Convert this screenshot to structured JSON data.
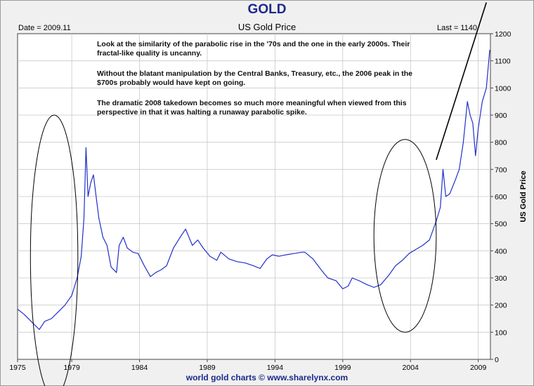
{
  "header": {
    "title": "GOLD",
    "date_label": "Date = 2009.11",
    "subtitle": "US Gold Price",
    "last_label": "Last = 1140"
  },
  "notes": {
    "p1": "Look at the similarity of the parabolic rise in the '70s and the one in the early 2000s. Their fractal-like quality is uncanny.",
    "p2_a": "Without the blatant manipulation by the Central Banks, Treasury, etc., the ",
    "p2_bold": "2006",
    "p2_b": " peak in the $700s probably would have kept on going.",
    "p3": "The dramatic 2008 takedown becomes so much more meaningful when viewed from this perspective in that it was halting a runaway parabolic spike."
  },
  "footer": "world gold charts © www.sharelynx.com",
  "colors": {
    "line": "#2230c8",
    "grid": "#c8c8c8",
    "title": "#1c2a8a",
    "plot_bg": "#ffffff"
  },
  "chart_data": {
    "type": "line",
    "title": "US Gold Price",
    "xlabel": "",
    "ylabel": "US Gold Price",
    "xlim": [
      1975,
      2009.9
    ],
    "ylim": [
      0,
      1200
    ],
    "y_axis_side": "right",
    "grid": true,
    "x_ticks": [
      1975,
      1979,
      1984,
      1989,
      1994,
      1999,
      2004,
      2009
    ],
    "y_ticks": [
      0,
      100,
      200,
      300,
      400,
      500,
      600,
      700,
      800,
      900,
      1000,
      1100,
      1200
    ],
    "series": [
      {
        "x": [
          1975.0,
          1975.5,
          1976.0,
          1976.6,
          1977.0,
          1977.5,
          1978.0,
          1978.5,
          1979.0,
          1979.4,
          1979.7,
          1979.9,
          1980.05,
          1980.2,
          1980.4,
          1980.6,
          1980.8,
          1981.0,
          1981.3,
          1981.6,
          1981.9,
          1982.3,
          1982.5,
          1982.8,
          1983.1,
          1983.5,
          1983.9,
          1984.3,
          1984.8,
          1985.2,
          1985.6,
          1986.0,
          1986.5,
          1987.0,
          1987.4,
          1987.9,
          1988.3,
          1988.7,
          1989.2,
          1989.7,
          1990.0,
          1990.6,
          1991.2,
          1991.8,
          1992.4,
          1992.9,
          1993.4,
          1993.8,
          1994.3,
          1994.8,
          1995.4,
          1996.0,
          1996.2,
          1996.8,
          1997.4,
          1997.9,
          1998.5,
          1999.0,
          1999.4,
          1999.7,
          2000.2,
          2000.8,
          2001.3,
          2001.8,
          2002.4,
          2002.9,
          2003.4,
          2003.9,
          2004.4,
          2004.9,
          2005.4,
          2005.9,
          2006.2,
          2006.4,
          2006.6,
          2006.9,
          2007.3,
          2007.6,
          2007.9,
          2008.2,
          2008.4,
          2008.6,
          2008.8,
          2009.0,
          2009.3,
          2009.6,
          2009.85
        ],
        "y": [
          185,
          165,
          140,
          110,
          140,
          150,
          175,
          200,
          235,
          300,
          380,
          520,
          780,
          600,
          650,
          680,
          600,
          520,
          450,
          420,
          340,
          320,
          420,
          450,
          410,
          395,
          390,
          350,
          305,
          320,
          330,
          345,
          410,
          450,
          480,
          420,
          440,
          410,
          380,
          365,
          395,
          370,
          360,
          355,
          345,
          335,
          370,
          385,
          380,
          385,
          390,
          395,
          395,
          370,
          330,
          300,
          290,
          260,
          270,
          300,
          290,
          275,
          265,
          275,
          310,
          345,
          365,
          390,
          405,
          420,
          440,
          510,
          560,
          700,
          600,
          610,
          660,
          700,
          800,
          950,
          900,
          870,
          750,
          850,
          950,
          1000,
          1140
        ]
      }
    ],
    "annotations": [
      {
        "type": "ellipse",
        "center": [
          1977.7,
          380
        ],
        "radii_x": 1.75,
        "radii_y": 520
      },
      {
        "type": "ellipse",
        "center": [
          2003.6,
          455
        ],
        "radii_x": 2.3,
        "radii_y": 355
      },
      {
        "type": "trend-line",
        "from": [
          2005.9,
          735
        ],
        "to": [
          2009.6,
          1315
        ]
      }
    ]
  }
}
